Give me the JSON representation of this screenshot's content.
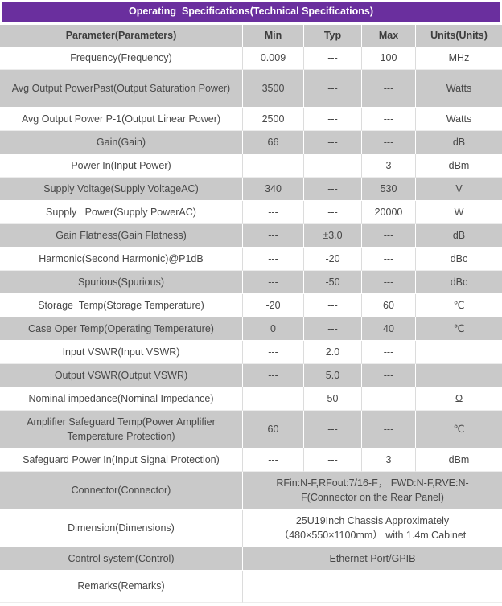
{
  "colors": {
    "header_bg": "#6a2f9e",
    "header_text": "#ffffff",
    "gray_row": "#c9c9c9",
    "text": "#474747"
  },
  "title": "Operating  Specifications(Technical Specifications)",
  "table": {
    "headers": [
      "Parameter(Parameters)",
      "Min",
      "Typ",
      "Max",
      "Units(Units)"
    ],
    "rows": [
      {
        "param": "Frequency(Frequency)",
        "min": "0.009",
        "typ": "---",
        "max": "100",
        "units": "MHz"
      },
      {
        "param": "Avg Output PowerPast(Output Saturation Power)",
        "min": "3500",
        "typ": "---",
        "max": "---",
        "units": "Watts",
        "tall": true
      },
      {
        "param": "Avg Output Power P-1(Output Linear Power)",
        "min": "2500",
        "typ": "---",
        "max": "---",
        "units": "Watts"
      },
      {
        "param": "Gain(Gain)",
        "min": "66",
        "typ": "---",
        "max": "---",
        "units": "dB"
      },
      {
        "param": "Power In(Input Power)",
        "min": "---",
        "typ": "---",
        "max": "3",
        "units": "dBm"
      },
      {
        "param": "Supply Voltage(Supply VoltageAC)",
        "min": "340",
        "typ": "---",
        "max": "530",
        "units": "V"
      },
      {
        "param": "Supply   Power(Supply PowerAC)",
        "min": "---",
        "typ": "---",
        "max": "20000",
        "units": "W"
      },
      {
        "param": "Gain Flatness(Gain Flatness)",
        "min": "---",
        "typ": "±3.0",
        "max": "---",
        "units": "dB"
      },
      {
        "param": "Harmonic(Second Harmonic)@P1dB",
        "min": "---",
        "typ": "-20",
        "max": "---",
        "units": "dBc"
      },
      {
        "param": "Spurious(Spurious)",
        "min": "---",
        "typ": "-50",
        "max": "---",
        "units": "dBc"
      },
      {
        "param": "Storage  Temp(Storage Temperature)",
        "min": "-20",
        "typ": "---",
        "max": "60",
        "units": "℃"
      },
      {
        "param": "Case Oper Temp(Operating Temperature)",
        "min": "0",
        "typ": "---",
        "max": "40",
        "units": "℃"
      },
      {
        "param": "Input VSWR(Input VSWR)",
        "min": "---",
        "typ": "2.0",
        "max": "---",
        "units": ""
      },
      {
        "param": "Output VSWR(Output VSWR)",
        "min": "---",
        "typ": "5.0",
        "max": "---",
        "units": ""
      },
      {
        "param": "Nominal impedance(Nominal Impedance)",
        "min": "---",
        "typ": "50",
        "max": "---",
        "units": "Ω"
      },
      {
        "param": "Amplifier Safeguard Temp(Power Amplifier Temperature Protection)",
        "min": "60",
        "typ": "---",
        "max": "---",
        "units": "℃",
        "tall": true
      },
      {
        "param": "Safeguard Power In(Input Signal Protection)",
        "min": "---",
        "typ": "---",
        "max": "3",
        "units": "dBm"
      },
      {
        "param": "Connector(Connector)",
        "span": "RFin:N-F,RFout:7/16-F， FWD:N-F,RVE:N-F(Connector on the Rear Panel)",
        "tall": true
      },
      {
        "param": "Dimension(Dimensions)",
        "span": "25U19Inch Chassis Approximately （480×550×1100mm） with 1.4m Cabinet",
        "tall": true
      },
      {
        "param": "Control system(Control)",
        "span": "Ethernet Port/GPIB"
      },
      {
        "param": "Remarks(Remarks)",
        "span": "",
        "last": true
      }
    ]
  }
}
